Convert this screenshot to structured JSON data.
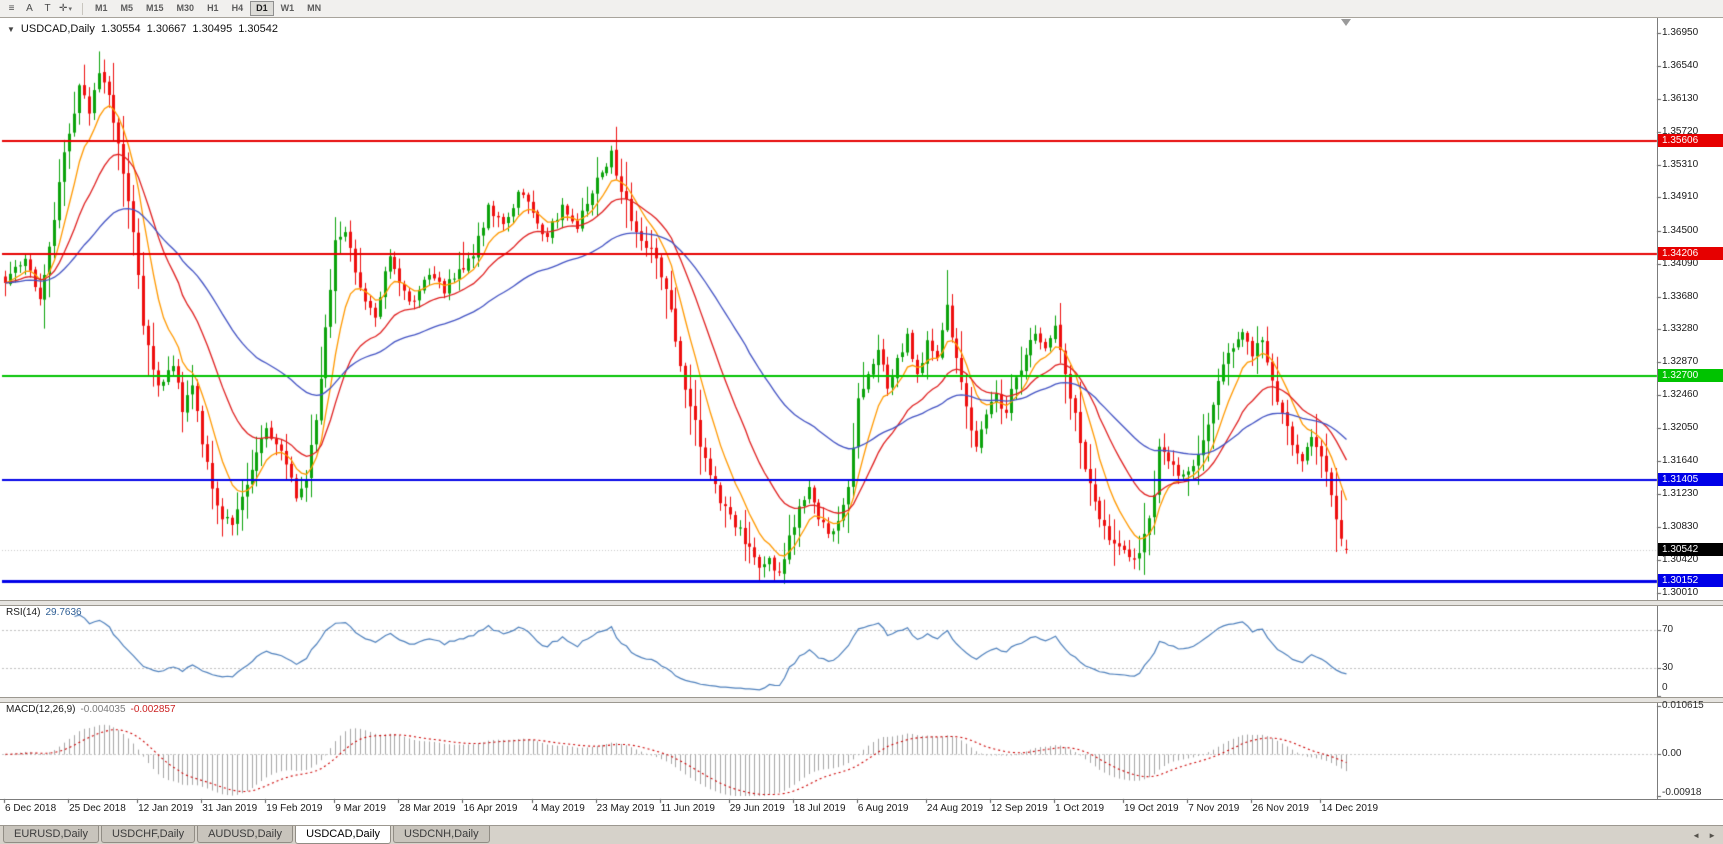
{
  "toolbar": {
    "tools": [
      {
        "name": "chart-menu",
        "glyph": "≡"
      },
      {
        "name": "annotation",
        "glyph": "A"
      },
      {
        "name": "text-tool",
        "glyph": "T"
      },
      {
        "name": "crosshair",
        "glyph": "✛",
        "caret": "▾"
      }
    ],
    "timeframes": [
      "M1",
      "M5",
      "M15",
      "M30",
      "H1",
      "H4",
      "D1",
      "W1",
      "MN"
    ],
    "active_timeframe": "D1"
  },
  "chart": {
    "symbol_label": "USDCAD,Daily",
    "dropdown_glyph": "▼",
    "ohlc": {
      "open": "1.30554",
      "high": "1.30667",
      "low": "1.30495",
      "close": "1.30542"
    }
  },
  "price_axis": {
    "ticks": [
      "1.36950",
      "1.36540",
      "1.36130",
      "1.35720",
      "1.35310",
      "1.34910",
      "1.34500",
      "1.34090",
      "1.33680",
      "1.33280",
      "1.32870",
      "1.32460",
      "1.32050",
      "1.31640",
      "1.31230",
      "1.30830",
      "1.30420",
      "1.30010"
    ]
  },
  "levels": [
    {
      "label": "1.35606",
      "price": 1.35606,
      "color": "#e60000",
      "line_width": 2
    },
    {
      "label": "1.34206",
      "price": 1.34206,
      "color": "#e60000",
      "line_width": 2
    },
    {
      "label": "1.32700",
      "price": 1.327,
      "color": "#00c300",
      "line_width": 2
    },
    {
      "label": "1.31405",
      "price": 1.31405,
      "color": "#0000e8",
      "line_width": 2
    },
    {
      "label": "1.30152",
      "price": 1.30152,
      "color": "#0000e8",
      "line_width": 3
    }
  ],
  "current_price": {
    "label": "1.30542",
    "price": 1.30542,
    "bg": "#000000"
  },
  "rsi_pane": {
    "title": "RSI(14)",
    "value": "29.7636",
    "line_color": "#4f81bd",
    "levels": [
      {
        "label": "70",
        "value": 70
      },
      {
        "label": "30",
        "value": 30
      },
      {
        "label": "0",
        "value": 0
      }
    ]
  },
  "macd_pane": {
    "title": "MACD(12,26,9)",
    "value_main": "-0.004035",
    "value_signal": "-0.002857",
    "hist_color": "#a6a6a6",
    "signal_color": "#cc0000",
    "axis": [
      {
        "label": "0.010615",
        "value": 0.010615
      },
      {
        "label": "0.00",
        "value": 0
      },
      {
        "label": "-0.00918",
        "value": -0.00918
      }
    ]
  },
  "date_axis": [
    {
      "label": "6 Dec 2018",
      "i": 0
    },
    {
      "label": "25 Dec 2018",
      "i": 13
    },
    {
      "label": "12 Jan 2019",
      "i": 27
    },
    {
      "label": "31 Jan 2019",
      "i": 40
    },
    {
      "label": "19 Feb 2019",
      "i": 53
    },
    {
      "label": "9 Mar 2019",
      "i": 67
    },
    {
      "label": "28 Mar 2019",
      "i": 80
    },
    {
      "label": "16 Apr 2019",
      "i": 93
    },
    {
      "label": "4 May 2019",
      "i": 107
    },
    {
      "label": "23 May 2019",
      "i": 120
    },
    {
      "label": "11 Jun 2019",
      "i": 133
    },
    {
      "label": "29 Jun 2019",
      "i": 147
    },
    {
      "label": "18 Jul 2019",
      "i": 160
    },
    {
      "label": "6 Aug 2019",
      "i": 173
    },
    {
      "label": "24 Aug 2019",
      "i": 187
    },
    {
      "label": "12 Sep 2019",
      "i": 200
    },
    {
      "label": "1 Oct 2019",
      "i": 213
    },
    {
      "label": "19 Oct 2019",
      "i": 227
    },
    {
      "label": "7 Nov 2019",
      "i": 240
    },
    {
      "label": "26 Nov 2019",
      "i": 253
    },
    {
      "label": "14 Dec 2019",
      "i": 267
    }
  ],
  "tabs": {
    "items": [
      "EURUSD,Daily",
      "USDCHF,Daily",
      "AUDUSD,Daily",
      "USDCAD,Daily",
      "USDCNH,Daily"
    ],
    "active_index": 3,
    "scroll_left_glyph": "◄",
    "scroll_right_glyph": "►"
  },
  "chart_data": {
    "type": "candlestick",
    "symbol": "USDCAD",
    "timeframe": "Daily",
    "num_candles": 273,
    "up_color": "#0ba30b",
    "down_color": "#ee0f0f",
    "price_range": {
      "top": 1.3711,
      "bottom": 1.2992
    },
    "close_keypoints": [
      [
        0,
        1.3385
      ],
      [
        4,
        1.3415
      ],
      [
        7,
        1.3365
      ],
      [
        9,
        1.343
      ],
      [
        11,
        1.351
      ],
      [
        13,
        1.357
      ],
      [
        15,
        1.363
      ],
      [
        17,
        1.3595
      ],
      [
        19,
        1.3645
      ],
      [
        21,
        1.3618
      ],
      [
        23,
        1.3558
      ],
      [
        26,
        1.3448
      ],
      [
        28,
        1.3332
      ],
      [
        31,
        1.3258
      ],
      [
        34,
        1.3282
      ],
      [
        36,
        1.3225
      ],
      [
        38,
        1.3258
      ],
      [
        40,
        1.3185
      ],
      [
        42,
        1.313
      ],
      [
        44,
        1.3092
      ],
      [
        46,
        1.3085
      ],
      [
        48,
        1.312
      ],
      [
        51,
        1.3175
      ],
      [
        53,
        1.3205
      ],
      [
        55,
        1.3185
      ],
      [
        57,
        1.316
      ],
      [
        59,
        1.3118
      ],
      [
        61,
        1.3142
      ],
      [
        63,
        1.3215
      ],
      [
        65,
        1.333
      ],
      [
        67,
        1.3438
      ],
      [
        69,
        1.3448
      ],
      [
        71,
        1.3398
      ],
      [
        73,
        1.3362
      ],
      [
        75,
        1.3342
      ],
      [
        78,
        1.3418
      ],
      [
        80,
        1.3385
      ],
      [
        83,
        1.3362
      ],
      [
        86,
        1.3395
      ],
      [
        89,
        1.3372
      ],
      [
        92,
        1.3402
      ],
      [
        95,
        1.3418
      ],
      [
        98,
        1.3482
      ],
      [
        101,
        1.3458
      ],
      [
        104,
        1.3498
      ],
      [
        107,
        1.3472
      ],
      [
        110,
        1.3442
      ],
      [
        113,
        1.3482
      ],
      [
        116,
        1.3452
      ],
      [
        119,
        1.3496
      ],
      [
        121,
        1.3522
      ],
      [
        123,
        1.3549
      ],
      [
        125,
        1.3498
      ],
      [
        128,
        1.3448
      ],
      [
        131,
        1.3428
      ],
      [
        133,
        1.3392
      ],
      [
        135,
        1.3352
      ],
      [
        137,
        1.3282
      ],
      [
        139,
        1.3232
      ],
      [
        142,
        1.3168
      ],
      [
        145,
        1.3112
      ],
      [
        148,
        1.3082
      ],
      [
        151,
        1.3058
      ],
      [
        153,
        1.3032
      ],
      [
        155,
        1.3044
      ],
      [
        157,
        1.3026
      ],
      [
        159,
        1.3072
      ],
      [
        161,
        1.3108
      ],
      [
        163,
        1.3132
      ],
      [
        165,
        1.3092
      ],
      [
        167,
        1.3074
      ],
      [
        169,
        1.309
      ],
      [
        171,
        1.3132
      ],
      [
        173,
        1.3242
      ],
      [
        175,
        1.3272
      ],
      [
        177,
        1.3302
      ],
      [
        179,
        1.3254
      ],
      [
        181,
        1.3292
      ],
      [
        183,
        1.3322
      ],
      [
        185,
        1.3272
      ],
      [
        187,
        1.3314
      ],
      [
        189,
        1.3292
      ],
      [
        191,
        1.3358
      ],
      [
        193,
        1.3292
      ],
      [
        195,
        1.3232
      ],
      [
        197,
        1.3182
      ],
      [
        199,
        1.3222
      ],
      [
        201,
        1.3248
      ],
      [
        203,
        1.3224
      ],
      [
        205,
        1.3268
      ],
      [
        207,
        1.3296
      ],
      [
        209,
        1.3322
      ],
      [
        211,
        1.3304
      ],
      [
        213,
        1.3332
      ],
      [
        215,
        1.3272
      ],
      [
        217,
        1.3224
      ],
      [
        219,
        1.3154
      ],
      [
        221,
        1.3114
      ],
      [
        223,
        1.3084
      ],
      [
        225,
        1.3062
      ],
      [
        227,
        1.3054
      ],
      [
        229,
        1.3042
      ],
      [
        231,
        1.3074
      ],
      [
        233,
        1.3122
      ],
      [
        234,
        1.3182
      ],
      [
        236,
        1.3164
      ],
      [
        238,
        1.3146
      ],
      [
        241,
        1.3158
      ],
      [
        243,
        1.319
      ],
      [
        245,
        1.3234
      ],
      [
        247,
        1.3284
      ],
      [
        249,
        1.3304
      ],
      [
        251,
        1.3324
      ],
      [
        253,
        1.3294
      ],
      [
        255,
        1.3314
      ],
      [
        257,
        1.3264
      ],
      [
        259,
        1.3224
      ],
      [
        261,
        1.3184
      ],
      [
        263,
        1.3164
      ],
      [
        265,
        1.3194
      ],
      [
        267,
        1.317
      ],
      [
        269,
        1.3122
      ],
      [
        270,
        1.3092
      ],
      [
        271,
        1.3068
      ],
      [
        272,
        1.30542
      ]
    ],
    "extremes": [
      {
        "i": 20,
        "high": 1.3662
      },
      {
        "i": 124,
        "high": 1.3562
      },
      {
        "i": 156,
        "low": 1.3016
      },
      {
        "i": 191,
        "high": 1.3401
      },
      {
        "i": 229,
        "low": 1.3036
      }
    ],
    "current_candle": {
      "open": 1.30554,
      "high": 1.30667,
      "low": 1.30495,
      "close": 1.30542
    },
    "moving_averages": [
      {
        "type": "ema",
        "period": 8,
        "color": "#ff9900"
      },
      {
        "type": "ema",
        "period": 20,
        "color": "#e02020"
      },
      {
        "type": "ema",
        "period": 50,
        "color": "#4353c4"
      }
    ],
    "rsi": {
      "period": 14,
      "last_value": 29.7636,
      "levels": [
        70,
        30
      ]
    },
    "macd": {
      "fast": 12,
      "slow": 26,
      "signal": 9,
      "last_main": -0.004035,
      "last_signal": -0.002857
    }
  }
}
